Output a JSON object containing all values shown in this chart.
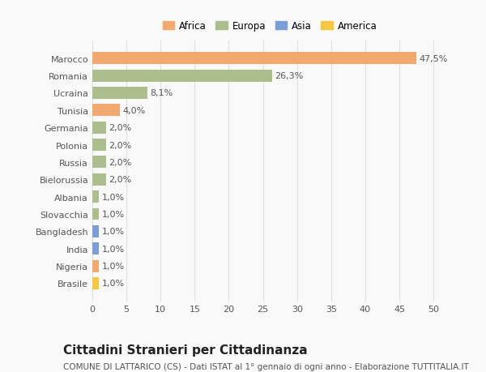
{
  "categories": [
    "Marocco",
    "Romania",
    "Ucraina",
    "Tunisia",
    "Germania",
    "Polonia",
    "Russia",
    "Bielorussia",
    "Albania",
    "Slovacchia",
    "Bangladesh",
    "India",
    "Nigeria",
    "Brasile"
  ],
  "values": [
    47.5,
    26.3,
    8.1,
    4.0,
    2.0,
    2.0,
    2.0,
    2.0,
    1.0,
    1.0,
    1.0,
    1.0,
    1.0,
    1.0
  ],
  "bar_colors": [
    "#F2A96E",
    "#ABBE8B",
    "#ABBE8B",
    "#F2A96E",
    "#ABBE8B",
    "#ABBE8B",
    "#ABBE8B",
    "#ABBE8B",
    "#ABBE8B",
    "#ABBE8B",
    "#7B9FD4",
    "#7B9FD4",
    "#F2A96E",
    "#F5C842"
  ],
  "labels": [
    "47,5%",
    "26,3%",
    "8,1%",
    "4,0%",
    "2,0%",
    "2,0%",
    "2,0%",
    "2,0%",
    "1,0%",
    "1,0%",
    "1,0%",
    "1,0%",
    "1,0%",
    "1,0%"
  ],
  "legend": [
    {
      "label": "Africa",
      "color": "#F2A96E"
    },
    {
      "label": "Europa",
      "color": "#ABBE8B"
    },
    {
      "label": "Asia",
      "color": "#7B9FD4"
    },
    {
      "label": "America",
      "color": "#F5C842"
    }
  ],
  "xlim": [
    0,
    52
  ],
  "xticks": [
    0,
    5,
    10,
    15,
    20,
    25,
    30,
    35,
    40,
    45,
    50
  ],
  "title": "Cittadini Stranieri per Cittadinanza",
  "subtitle": "COMUNE DI LATTARICO (CS) - Dati ISTAT al 1° gennaio di ogni anno - Elaborazione TUTTITALIA.IT",
  "background_color": "#f9f9f9",
  "grid_color": "#e0e0e0",
  "bar_height": 0.7,
  "title_fontsize": 11,
  "subtitle_fontsize": 7.5,
  "tick_fontsize": 8,
  "label_fontsize": 8
}
